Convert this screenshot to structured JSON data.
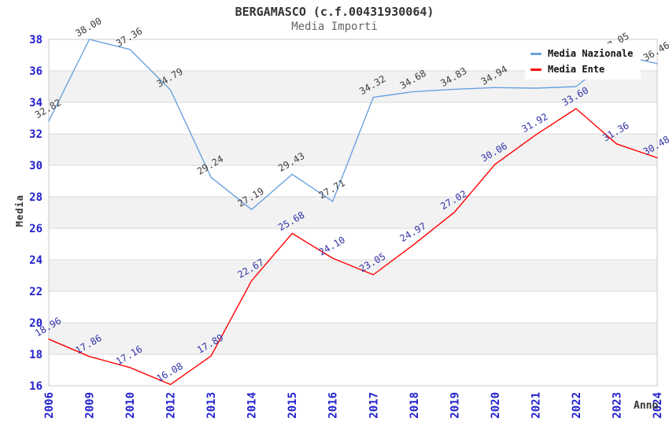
{
  "header": {
    "title": "BERGAMASCO (c.f.00431930064)",
    "subtitle": "Media Importi"
  },
  "legend": {
    "position": "top-right",
    "items": [
      {
        "label": "Media Nazionale",
        "color": "#6aa2e0"
      },
      {
        "label": "Media Ente",
        "color": "#ff0000"
      }
    ]
  },
  "axes": {
    "y_tick_labels": [
      "16",
      "18",
      "20",
      "22",
      "24",
      "26",
      "28",
      "30",
      "32",
      "34",
      "36",
      "38"
    ],
    "x_tick_labels": [
      "2006",
      "2009",
      "2010",
      "2012",
      "2013",
      "2014",
      "2015",
      "2016",
      "2017",
      "2018",
      "2019",
      "2020",
      "2021",
      "2022",
      "2023",
      "2024"
    ],
    "tick_label_color": "#2222cc"
  },
  "chart_data": {
    "type": "line",
    "title": "BERGAMASCO (c.f.00431930064)",
    "subtitle": "Media Importi",
    "xlabel": "Anno",
    "ylabel": "Media",
    "ylim": [
      16,
      38
    ],
    "ytick_step": 2,
    "grid": "horizontal gridlines with alternating light-gray bands every 2 units",
    "legend_position": "top-right, white box overlapping plot",
    "categories": [
      "2006",
      "2009",
      "2010",
      "2012",
      "2013",
      "2014",
      "2015",
      "2016",
      "2017",
      "2018",
      "2019",
      "2020",
      "2021",
      "2022",
      "2023",
      "2024"
    ],
    "series": [
      {
        "name": "Media Nazionale",
        "color": "#6aa2e0",
        "label_color": "#3d3d3d",
        "values": [
          32.82,
          38.0,
          37.36,
          34.79,
          29.24,
          27.19,
          29.43,
          27.71,
          34.32,
          34.68,
          34.83,
          34.94,
          34.9,
          35.0,
          37.05,
          36.46
        ],
        "labels": [
          "32.82",
          "38.00",
          "37.36",
          "34.79",
          "29.24",
          "27.19",
          "29.43",
          "27.71",
          "34.32",
          "34.68",
          "34.83",
          "34.94",
          null,
          null,
          "37.05",
          "36.46"
        ]
      },
      {
        "name": "Media Ente",
        "color": "#ff0000",
        "label_color": "#3333aa",
        "values": [
          18.96,
          17.86,
          17.16,
          16.08,
          17.89,
          22.67,
          25.68,
          24.1,
          23.05,
          24.97,
          27.02,
          30.06,
          31.92,
          33.6,
          31.36,
          30.48
        ],
        "labels": [
          "18.96",
          "17.86",
          "17.16",
          "16.08",
          "17.89",
          "22.67",
          "25.68",
          "24.10",
          "23.05",
          "24.97",
          "27.02",
          "30.06",
          "31.92",
          "33.60",
          "31.36",
          "30.48"
        ]
      }
    ]
  },
  "style": {
    "band_color": "#f2f2f2",
    "gridline_color": "#d9d9d9",
    "plot_border_color": "#c9c9c9",
    "background": "#ffffff"
  }
}
